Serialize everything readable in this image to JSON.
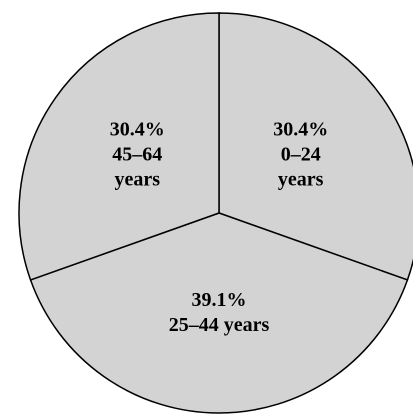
{
  "chart_data": {
    "type": "pie",
    "categories": [
      "0–24 years",
      "25–44 years",
      "45–64 years"
    ],
    "values": [
      30.4,
      39.1,
      30.4
    ],
    "value_labels": [
      "30.4%",
      "39.1%",
      "30.4%"
    ],
    "color": "#d3d3d3"
  }
}
